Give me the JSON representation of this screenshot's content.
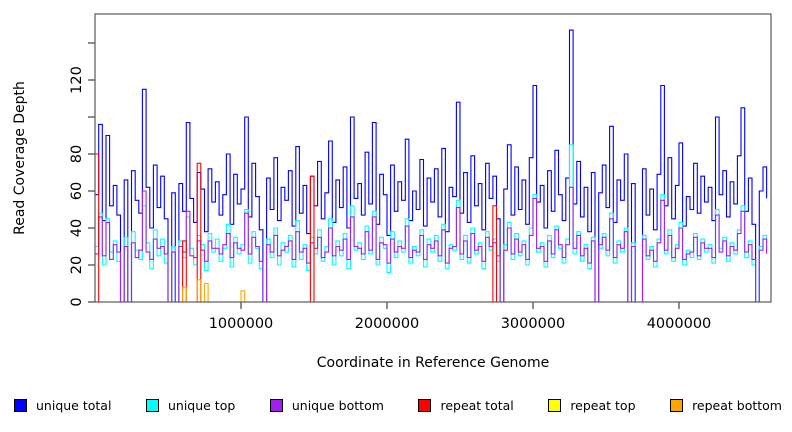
{
  "figure": {
    "xlabel": "Coordinate in Reference Genome",
    "ylabel": "Read Coverage Depth"
  },
  "legend": {
    "items": [
      {
        "label": "unique total",
        "color": "#0000ff"
      },
      {
        "label": "unique top",
        "color": "#00ffff"
      },
      {
        "label": "unique bottom",
        "color": "#a020f0"
      },
      {
        "label": "repeat total",
        "color": "#ff0000"
      },
      {
        "label": "repeat top",
        "color": "#ffff00"
      },
      {
        "label": "repeat bottom",
        "color": "#ffa500"
      }
    ]
  },
  "chart_data": {
    "type": "line",
    "line_style": "step",
    "title": "",
    "xlabel": "Coordinate in Reference Genome",
    "ylabel": "Read Coverage Depth",
    "xlim": [
      0,
      4630000
    ],
    "ylim": [
      0,
      156
    ],
    "x_start": 0,
    "x_step": 25000,
    "grid": false,
    "legend_position": "bottom",
    "x_ticks": [
      {
        "value": 1000000,
        "label": "1000000"
      },
      {
        "value": 2000000,
        "label": "2000000"
      },
      {
        "value": 3000000,
        "label": "3000000"
      },
      {
        "value": 4000000,
        "label": "4000000"
      }
    ],
    "y_ticks": [
      {
        "value": 0,
        "label": "0"
      },
      {
        "value": 20,
        "label": "20"
      },
      {
        "value": 40,
        "label": "40"
      },
      {
        "value": 60,
        "label": "60"
      },
      {
        "value": 80,
        "label": "80"
      },
      {
        "value": 100,
        "label": ""
      },
      {
        "value": 120,
        "label": "120"
      },
      {
        "value": 140,
        "label": ""
      }
    ],
    "series": [
      {
        "name": "unique total",
        "color": "#0000ff",
        "values": [
          58,
          96,
          44,
          90,
          52,
          63,
          47,
          0,
          66,
          0,
          71,
          55,
          48,
          115,
          62,
          40,
          74,
          51,
          68,
          45,
          0,
          59,
          0,
          64,
          49,
          97,
          56,
          43,
          70,
          61,
          38,
          72,
          54,
          65,
          47,
          58,
          80,
          42,
          69,
          53,
          61,
          100,
          46,
          75,
          57,
          39,
          0,
          67,
          50,
          78,
          44,
          62,
          55,
          71,
          41,
          84,
          48,
          63,
          37,
          68,
          52,
          76,
          45,
          59,
          87,
          43,
          66,
          51,
          73,
          40,
          100,
          56,
          64,
          47,
          81,
          53,
          97,
          42,
          69,
          58,
          36,
          74,
          49,
          65,
          55,
          88,
          44,
          60,
          50,
          77,
          41,
          67,
          54,
          72,
          46,
          83,
          38,
          62,
          57,
          108,
          48,
          70,
          43,
          79,
          52,
          64,
          39,
          75,
          56,
          68,
          45,
          0,
          61,
          85,
          47,
          73,
          50,
          66,
          42,
          78,
          117,
          54,
          63,
          40,
          71,
          49,
          82,
          58,
          44,
          67,
          147,
          53,
          76,
          46,
          62,
          38,
          70,
          0,
          59,
          74,
          51,
          95,
          43,
          66,
          55,
          80,
          0,
          64,
          0,
          0,
          72,
          47,
          61,
          39,
          69,
          117,
          52,
          78,
          45,
          63,
          86,
          41,
          57,
          50,
          75,
          48,
          68,
          54,
          62,
          44,
          100,
          58,
          71,
          46,
          65,
          53,
          79,
          105,
          49,
          67,
          42,
          0,
          60,
          73,
          56
        ]
      },
      {
        "name": "unique top",
        "color": "#00ffff",
        "values": [
          30,
          48,
          20,
          45,
          27,
          33,
          22,
          0,
          35,
          0,
          38,
          28,
          23,
          52,
          32,
          18,
          39,
          25,
          34,
          21,
          0,
          30,
          0,
          33,
          24,
          46,
          29,
          20,
          36,
          31,
          17,
          37,
          27,
          34,
          22,
          29,
          42,
          19,
          35,
          26,
          31,
          50,
          21,
          38,
          29,
          18,
          0,
          34,
          24,
          40,
          20,
          32,
          27,
          36,
          19,
          44,
          23,
          31,
          17,
          35,
          26,
          39,
          22,
          30,
          45,
          20,
          33,
          25,
          37,
          18,
          52,
          28,
          32,
          23,
          41,
          26,
          49,
          20,
          35,
          29,
          16,
          38,
          24,
          33,
          27,
          45,
          21,
          30,
          25,
          39,
          19,
          34,
          27,
          36,
          22,
          42,
          18,
          31,
          28,
          55,
          23,
          36,
          21,
          40,
          26,
          32,
          18,
          38,
          28,
          34,
          22,
          0,
          31,
          43,
          23,
          37,
          25,
          33,
          20,
          40,
          58,
          27,
          32,
          19,
          36,
          24,
          41,
          29,
          21,
          34,
          85,
          26,
          38,
          22,
          31,
          18,
          35,
          0,
          29,
          37,
          25,
          48,
          21,
          33,
          27,
          40,
          0,
          32,
          0,
          0,
          36,
          23,
          30,
          19,
          34,
          58,
          26,
          39,
          22,
          31,
          43,
          20,
          28,
          24,
          37,
          23,
          34,
          27,
          31,
          21,
          50,
          29,
          35,
          22,
          32,
          26,
          39,
          52,
          24,
          33,
          20,
          0,
          30,
          36,
          28
        ]
      },
      {
        "name": "unique bottom",
        "color": "#a020f0",
        "values": [
          26,
          46,
          25,
          43,
          23,
          31,
          27,
          0,
          30,
          0,
          32,
          24,
          28,
          60,
          27,
          23,
          34,
          29,
          30,
          26,
          0,
          27,
          0,
          30,
          27,
          49,
          25,
          24,
          33,
          28,
          22,
          33,
          29,
          29,
          26,
          31,
          37,
          24,
          32,
          29,
          28,
          48,
          26,
          35,
          30,
          22,
          0,
          31,
          27,
          36,
          25,
          28,
          30,
          33,
          23,
          38,
          27,
          29,
          21,
          32,
          29,
          35,
          24,
          27,
          40,
          25,
          30,
          28,
          34,
          23,
          46,
          30,
          29,
          26,
          38,
          28,
          46,
          23,
          32,
          31,
          21,
          34,
          27,
          30,
          29,
          41,
          24,
          28,
          27,
          36,
          23,
          31,
          29,
          33,
          25,
          39,
          21,
          29,
          30,
          51,
          26,
          33,
          24,
          37,
          28,
          30,
          22,
          35,
          30,
          32,
          25,
          0,
          28,
          40,
          26,
          34,
          27,
          31,
          23,
          36,
          56,
          29,
          30,
          22,
          33,
          26,
          39,
          31,
          24,
          31,
          62,
          29,
          36,
          25,
          29,
          21,
          33,
          0,
          31,
          35,
          28,
          45,
          24,
          31,
          29,
          38,
          0,
          30,
          0,
          0,
          34,
          25,
          28,
          22,
          32,
          55,
          28,
          36,
          24,
          29,
          40,
          23,
          26,
          27,
          35,
          25,
          32,
          29,
          29,
          24,
          47,
          27,
          33,
          25,
          30,
          28,
          37,
          49,
          27,
          31,
          23,
          0,
          28,
          34,
          26
        ]
      },
      {
        "name": "repeat total",
        "color": "#ff0000",
        "baseline": 0,
        "spikes": [
          {
            "i": 0,
            "v": 80
          },
          {
            "i": 24,
            "v": 33
          },
          {
            "i": 28,
            "v": 75
          },
          {
            "i": 59,
            "v": 68
          },
          {
            "i": 109,
            "v": 52
          }
        ]
      },
      {
        "name": "repeat top",
        "color": "#ffff00",
        "baseline": 0,
        "spikes": []
      },
      {
        "name": "repeat bottom",
        "color": "#ffa500",
        "baseline": 0,
        "spikes": [
          {
            "i": 24,
            "v": 8
          },
          {
            "i": 28,
            "v": 12
          },
          {
            "i": 30,
            "v": 10
          },
          {
            "i": 40,
            "v": 6
          }
        ]
      }
    ]
  }
}
